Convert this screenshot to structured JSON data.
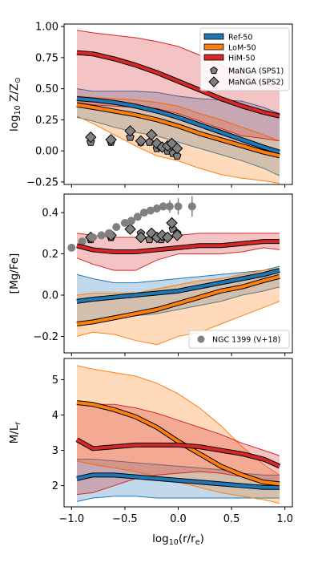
{
  "chart_data": [
    {
      "type": "line",
      "panel": "top",
      "ylabel": "log10 Z/Z⊙",
      "xlim": [
        -1.07,
        1.07
      ],
      "ylim": [
        -0.27,
        1.02
      ],
      "yticks": [
        "1.00",
        "0.75",
        "0.50",
        "0.25",
        "0.00",
        "−0.25"
      ],
      "ytick_values": [
        1.0,
        0.75,
        0.5,
        0.25,
        0.0,
        -0.25
      ],
      "x": [
        -0.95,
        -0.8,
        -0.6,
        -0.4,
        -0.2,
        0.0,
        0.2,
        0.4,
        0.6,
        0.8,
        0.95
      ],
      "series": [
        {
          "name": "Ref-50",
          "color": "#1f77b4",
          "median": [
            0.42,
            0.41,
            0.39,
            0.36,
            0.32,
            0.27,
            0.21,
            0.15,
            0.09,
            0.03,
            -0.01
          ],
          "lower": [
            0.27,
            0.24,
            0.19,
            0.15,
            0.12,
            0.07,
            0.02,
            -0.03,
            -0.08,
            -0.14,
            -0.2
          ],
          "upper": [
            0.5,
            0.48,
            0.48,
            0.48,
            0.47,
            0.44,
            0.42,
            0.41,
            0.4,
            0.35,
            0.3
          ]
        },
        {
          "name": "LoM-50",
          "color": "#ff7f0e",
          "median": [
            0.37,
            0.35,
            0.32,
            0.29,
            0.25,
            0.2,
            0.14,
            0.09,
            0.04,
            -0.01,
            -0.04
          ],
          "lower": [
            0.28,
            0.22,
            0.13,
            0.04,
            -0.04,
            -0.08,
            -0.14,
            -0.19,
            -0.22,
            -0.24,
            -0.26
          ],
          "upper": [
            0.44,
            0.43,
            0.42,
            0.41,
            0.39,
            0.36,
            0.3,
            0.25,
            0.19,
            0.13,
            0.08
          ]
        },
        {
          "name": "HiM-50",
          "color": "#d62728",
          "median": [
            0.79,
            0.78,
            0.74,
            0.69,
            0.63,
            0.56,
            0.49,
            0.42,
            0.36,
            0.31,
            0.28
          ],
          "lower": [
            0.39,
            0.37,
            0.36,
            0.35,
            0.34,
            0.3,
            0.24,
            0.18,
            0.12,
            0.1,
            0.08
          ],
          "upper": [
            0.97,
            0.95,
            0.93,
            0.91,
            0.88,
            0.84,
            0.77,
            0.69,
            0.62,
            0.55,
            0.5
          ]
        }
      ],
      "markers": [
        {
          "name": "MaNGA (SPS1)",
          "shape": "pentagon",
          "points": [
            [
              -0.82,
              0.07
            ],
            [
              -0.63,
              0.07
            ],
            [
              -0.45,
              0.11
            ],
            [
              -0.35,
              0.07
            ],
            [
              -0.27,
              0.07
            ],
            [
              -0.2,
              0.02
            ],
            [
              -0.16,
              0.03
            ],
            [
              -0.1,
              0.0
            ],
            [
              -0.05,
              -0.02
            ],
            [
              -0.01,
              -0.04
            ]
          ]
        },
        {
          "name": "MaNGA (SPS2)",
          "shape": "diamond",
          "points": [
            [
              -0.82,
              0.11
            ],
            [
              -0.63,
              0.09
            ],
            [
              -0.45,
              0.16
            ],
            [
              -0.35,
              0.08
            ],
            [
              -0.25,
              0.13
            ],
            [
              -0.2,
              0.06
            ],
            [
              -0.15,
              0.03
            ],
            [
              -0.1,
              0.04
            ],
            [
              -0.06,
              0.06
            ],
            [
              -0.01,
              0.02
            ]
          ]
        }
      ],
      "legend_position": "upper right"
    },
    {
      "type": "line",
      "panel": "middle",
      "ylabel": "[Mg/Fe]",
      "xlim": [
        -1.07,
        1.07
      ],
      "ylim": [
        -0.28,
        0.49
      ],
      "yticks": [
        "0.4",
        "0.2",
        "0.0",
        "−0.2"
      ],
      "ytick_values": [
        0.4,
        0.2,
        0.0,
        -0.2
      ],
      "x": [
        -0.95,
        -0.8,
        -0.6,
        -0.4,
        -0.2,
        0.0,
        0.2,
        0.4,
        0.6,
        0.8,
        0.95
      ],
      "series": [
        {
          "name": "Ref-50",
          "color": "#1f77b4",
          "median": [
            -0.03,
            -0.02,
            -0.01,
            0.0,
            0.01,
            0.02,
            0.04,
            0.06,
            0.08,
            0.1,
            0.12
          ],
          "lower": [
            -0.14,
            -0.12,
            -0.1,
            -0.1,
            -0.09,
            -0.07,
            -0.05,
            -0.03,
            0.0,
            0.02,
            0.04
          ],
          "upper": [
            0.1,
            0.08,
            0.06,
            0.06,
            0.07,
            0.08,
            0.09,
            0.1,
            0.11,
            0.12,
            0.14
          ]
        },
        {
          "name": "LoM-50",
          "color": "#ff7f0e",
          "median": [
            -0.14,
            -0.13,
            -0.11,
            -0.09,
            -0.07,
            -0.04,
            -0.01,
            0.02,
            0.04,
            0.07,
            0.09
          ],
          "lower": [
            -0.2,
            -0.18,
            -0.19,
            -0.22,
            -0.24,
            -0.2,
            -0.18,
            -0.14,
            -0.1,
            -0.06,
            -0.03
          ],
          "upper": [
            0.0,
            0.01,
            0.01,
            0.01,
            0.03,
            0.05,
            0.07,
            0.08,
            0.1,
            0.12,
            0.13
          ]
        },
        {
          "name": "HiM-50",
          "color": "#d62728",
          "median": [
            0.24,
            0.22,
            0.21,
            0.21,
            0.22,
            0.23,
            0.24,
            0.24,
            0.25,
            0.26,
            0.26
          ],
          "lower": [
            0.18,
            0.15,
            0.12,
            0.12,
            0.17,
            0.2,
            0.2,
            0.2,
            0.21,
            0.23,
            0.22
          ],
          "upper": [
            0.3,
            0.29,
            0.28,
            0.28,
            0.28,
            0.29,
            0.3,
            0.3,
            0.3,
            0.3,
            0.3
          ]
        }
      ],
      "markers": [
        {
          "name": "MaNGA (SPS1)",
          "shape": "pentagon",
          "points": [
            [
              -0.82,
              0.27
            ],
            [
              -0.63,
              0.28
            ],
            [
              -0.45,
              0.32
            ],
            [
              -0.35,
              0.3
            ],
            [
              -0.27,
              0.27
            ],
            [
              -0.2,
              0.28
            ],
            [
              -0.16,
              0.27
            ],
            [
              -0.1,
              0.28
            ],
            [
              -0.05,
              0.32
            ],
            [
              -0.01,
              0.3
            ]
          ]
        },
        {
          "name": "MaNGA (SPS2)",
          "shape": "diamond",
          "points": [
            [
              -0.82,
              0.28
            ],
            [
              -0.63,
              0.29
            ],
            [
              -0.45,
              0.32
            ],
            [
              -0.35,
              0.28
            ],
            [
              -0.25,
              0.3
            ],
            [
              -0.2,
              0.28
            ],
            [
              -0.15,
              0.29
            ],
            [
              -0.1,
              0.28
            ],
            [
              -0.06,
              0.35
            ],
            [
              -0.01,
              0.29
            ]
          ]
        },
        {
          "name": "NGC 1399 (V+18)",
          "shape": "circle",
          "points": [
            [
              -1.0,
              0.23
            ],
            [
              -0.9,
              0.26
            ],
            [
              -0.8,
              0.28
            ],
            [
              -0.72,
              0.29
            ],
            [
              -0.65,
              0.3
            ],
            [
              -0.58,
              0.33
            ],
            [
              -0.5,
              0.35
            ],
            [
              -0.44,
              0.36
            ],
            [
              -0.38,
              0.38
            ],
            [
              -0.32,
              0.4
            ],
            [
              -0.26,
              0.41
            ],
            [
              -0.2,
              0.42
            ],
            [
              -0.14,
              0.43
            ],
            [
              -0.08,
              0.43
            ],
            [
              0.0,
              0.43
            ],
            [
              0.13,
              0.43
            ]
          ],
          "errors": [
            0.005,
            0.005,
            0.008,
            0.008,
            0.01,
            0.01,
            0.012,
            0.012,
            0.014,
            0.015,
            0.015,
            0.02,
            0.02,
            0.03,
            0.04,
            0.05
          ]
        }
      ],
      "legend_position": "lower right"
    },
    {
      "type": "line",
      "panel": "bottom",
      "ylabel": "M/Lr",
      "xlabel": "log10(r/re)",
      "xlim": [
        -1.07,
        1.07
      ],
      "ylim": [
        1.4,
        5.6
      ],
      "yticks": [
        "5",
        "4",
        "3",
        "2"
      ],
      "ytick_values": [
        5,
        4,
        3,
        2
      ],
      "xticks": [
        "−1.0",
        "−0.5",
        "0.0",
        "0.5",
        "1.0"
      ],
      "xtick_values": [
        -1.0,
        -0.5,
        0.0,
        0.5,
        1.0
      ],
      "x": [
        -0.95,
        -0.8,
        -0.6,
        -0.4,
        -0.2,
        0.0,
        0.2,
        0.4,
        0.6,
        0.8,
        0.95
      ],
      "series": [
        {
          "name": "Ref-50",
          "color": "#1f77b4",
          "median": [
            2.2,
            2.3,
            2.3,
            2.25,
            2.2,
            2.15,
            2.1,
            2.05,
            2.0,
            1.95,
            1.95
          ],
          "lower": [
            1.55,
            1.65,
            1.7,
            1.7,
            1.65,
            1.65,
            1.65,
            1.65,
            1.65,
            1.65,
            1.65
          ],
          "upper": [
            2.75,
            2.75,
            2.7,
            2.65,
            2.6,
            2.55,
            2.5,
            2.45,
            2.35,
            2.3,
            2.3
          ]
        },
        {
          "name": "LoM-50",
          "color": "#ff7f0e",
          "median": [
            4.35,
            4.3,
            4.15,
            3.95,
            3.65,
            3.25,
            2.9,
            2.55,
            2.3,
            2.1,
            2.05
          ],
          "lower": [
            2.7,
            2.6,
            2.5,
            2.4,
            2.25,
            2.1,
            1.95,
            1.8,
            1.7,
            1.6,
            1.5
          ],
          "upper": [
            5.4,
            5.3,
            5.2,
            5.1,
            4.9,
            4.6,
            4.2,
            3.7,
            3.1,
            2.6,
            2.3
          ]
        },
        {
          "name": "HiM-50",
          "color": "#d62728",
          "median": [
            3.3,
            3.05,
            3.1,
            3.15,
            3.15,
            3.15,
            3.1,
            3.0,
            2.9,
            2.75,
            2.55
          ],
          "lower": [
            1.75,
            1.8,
            2.0,
            2.2,
            2.3,
            2.35,
            2.4,
            2.35,
            2.25,
            2.1,
            2.0
          ],
          "upper": [
            4.3,
            4.3,
            4.3,
            4.2,
            4.05,
            3.85,
            3.65,
            3.45,
            3.2,
            3.0,
            2.85
          ]
        }
      ]
    }
  ]
}
